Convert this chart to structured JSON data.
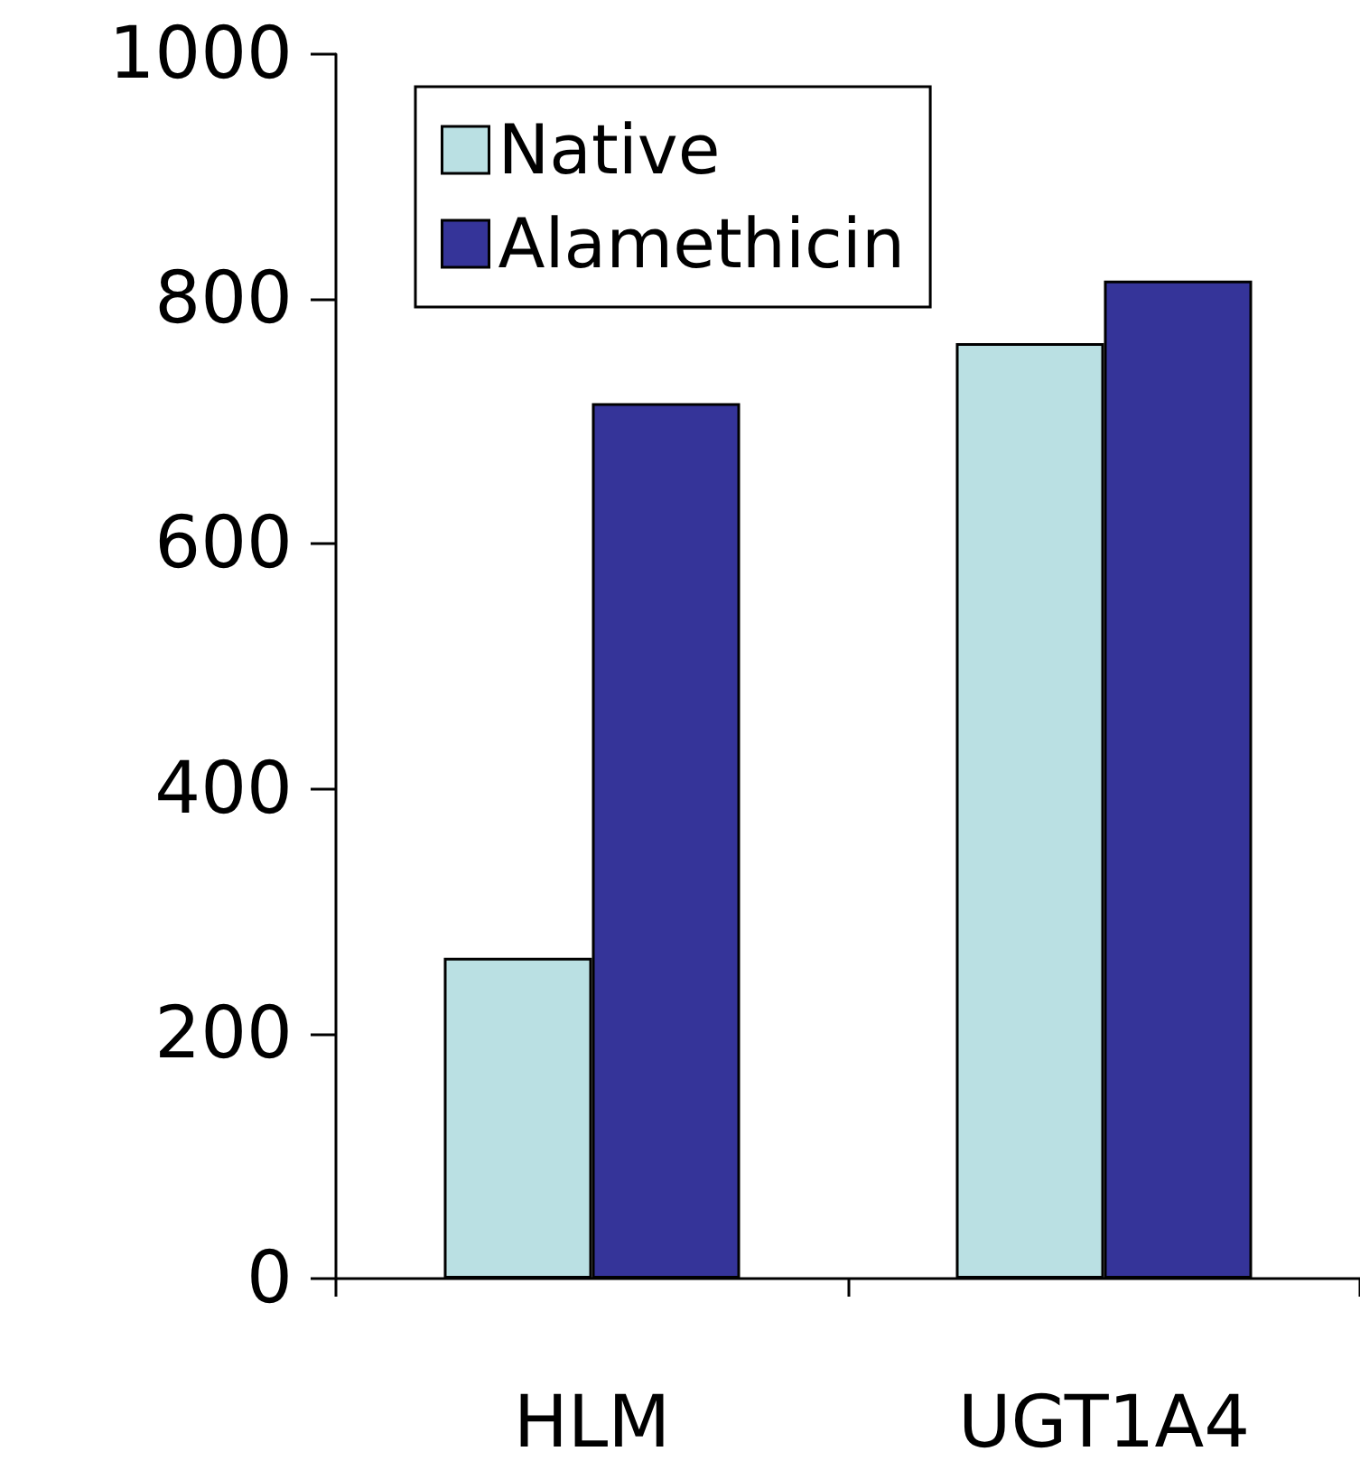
{
  "chart_data": {
    "type": "bar",
    "categories": [
      "HLM",
      "UGT1A4"
    ],
    "series": [
      {
        "name": "Native",
        "color": "#bae0e3",
        "values": [
          262,
          764
        ]
      },
      {
        "name": "Alamethicin",
        "color": "#353499",
        "values": [
          715,
          815
        ]
      }
    ],
    "ylim": [
      0,
      1000
    ],
    "yticks": [
      0,
      200,
      400,
      600,
      800,
      1000
    ],
    "grid": false,
    "legend": "top left"
  }
}
